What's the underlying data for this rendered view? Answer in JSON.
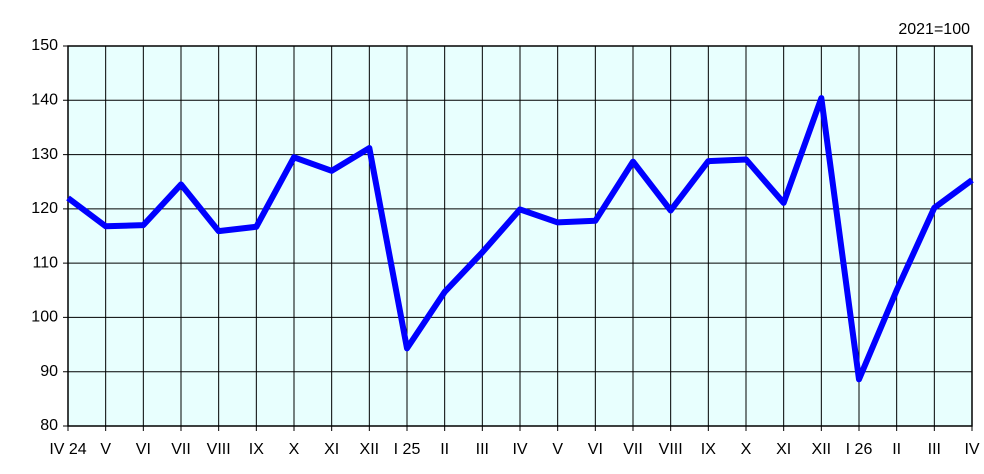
{
  "chart_data": {
    "type": "line",
    "annotation": "2021=100",
    "categories": [
      "IV 24",
      "V",
      "VI",
      "VII",
      "VIII",
      "IX",
      "X",
      "XI",
      "XII",
      "I 25",
      "II",
      "III",
      "IV",
      "V",
      "VI",
      "VII",
      "VIII",
      "IX",
      "X",
      "XI",
      "XII",
      "I 26",
      "II",
      "III",
      "IV"
    ],
    "series": [
      {
        "name": "Index",
        "color": "#0000ff",
        "values": [
          122,
          116.8,
          117,
          124.5,
          115.9,
          116.7,
          129.5,
          127,
          131.2,
          94.3,
          104.7,
          112,
          119.9,
          117.5,
          117.8,
          128.7,
          119.7,
          128.8,
          129.1,
          121.1,
          140.4,
          88.6,
          105,
          120.2,
          125.3
        ]
      }
    ],
    "ylim": [
      80,
      150
    ],
    "yticks": [
      80,
      90,
      100,
      110,
      120,
      130,
      140,
      150
    ],
    "grid": true,
    "background": "#e8fffe"
  }
}
